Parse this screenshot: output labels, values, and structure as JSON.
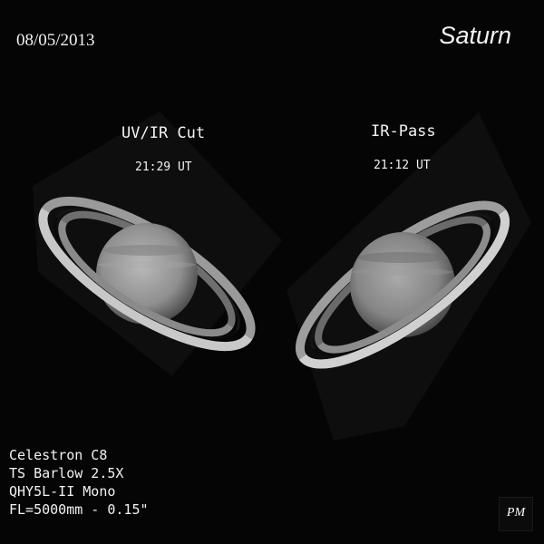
{
  "date": "08/05/2013",
  "title": "Saturn",
  "panels": [
    {
      "filter": "UV/IR Cut",
      "time": "21:29 UT"
    },
    {
      "filter": "IR-Pass",
      "time": "21:12 UT"
    }
  ],
  "equipment": [
    "Celestron C8",
    "TS Barlow 2.5X",
    "QHY5L-II Mono",
    "FL=5000mm - 0.15\""
  ],
  "signature": "PM"
}
